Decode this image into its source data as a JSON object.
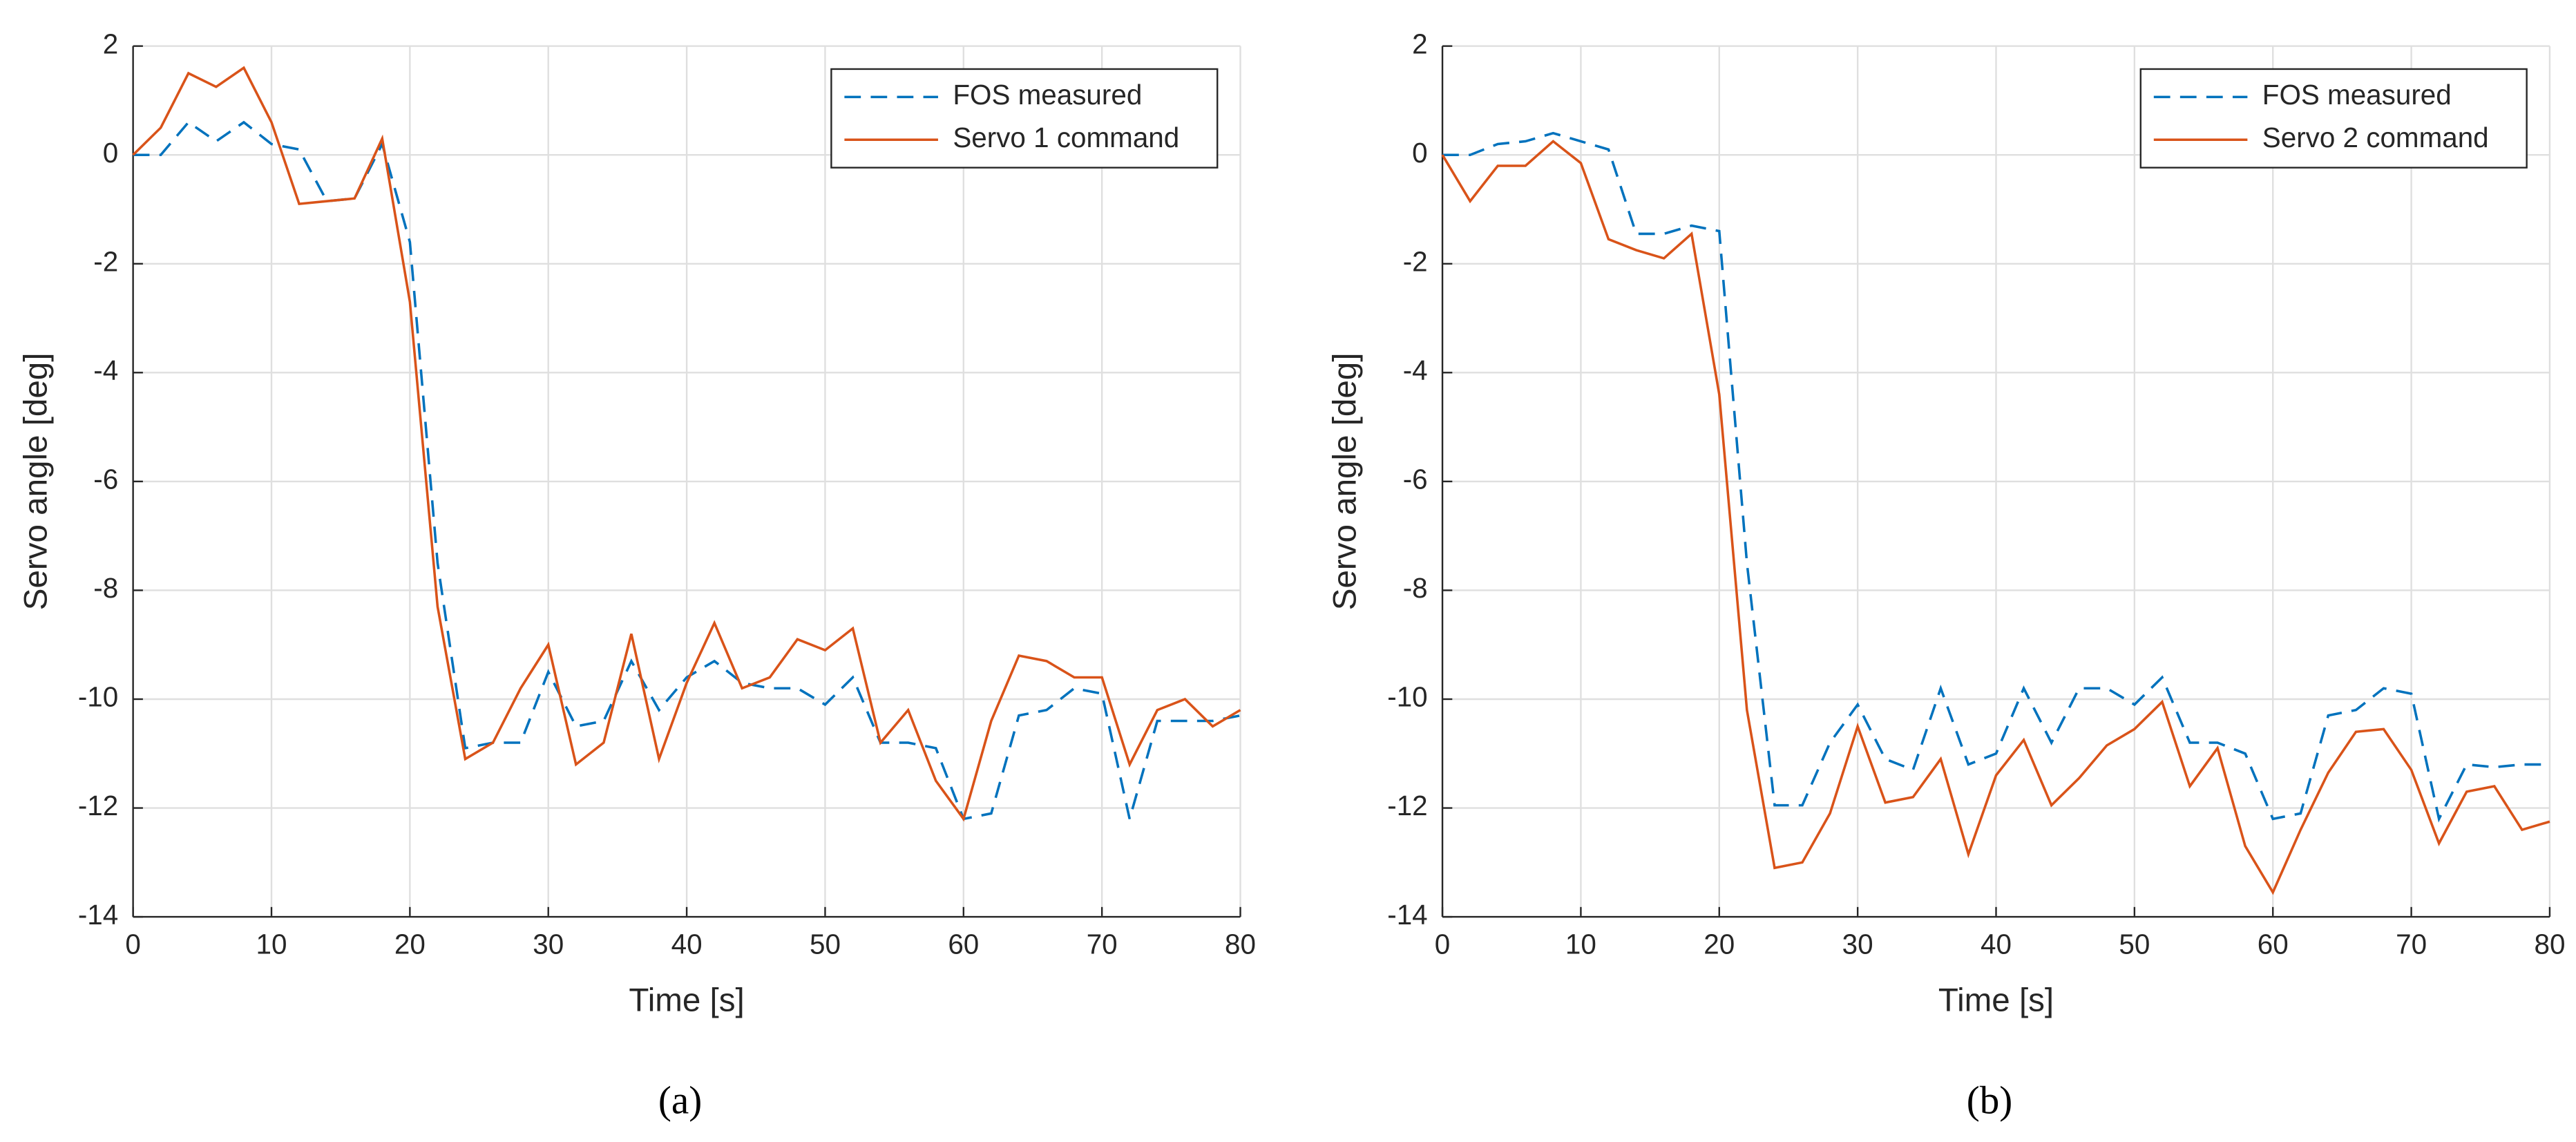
{
  "chart_data": [
    {
      "type": "line",
      "xlabel": "Time [s]",
      "ylabel": "Servo angle [deg]",
      "caption": "(a)",
      "x": [
        0,
        2,
        4,
        6,
        8,
        10,
        12,
        14,
        16,
        18,
        20,
        22,
        24,
        26,
        28,
        30,
        32,
        34,
        36,
        38,
        40,
        42,
        44,
        46,
        48,
        50,
        52,
        54,
        56,
        58,
        60,
        62,
        64,
        66,
        68,
        70,
        72,
        74,
        76,
        78,
        80
      ],
      "series": [
        {
          "name": "FOS measured",
          "color": "#0072bd",
          "linestyle": "dashed",
          "values": [
            0,
            0,
            0.6,
            0.25,
            0.6,
            0.2,
            0.1,
            -0.85,
            -0.8,
            0.2,
            -1.6,
            -7.5,
            -10.9,
            -10.8,
            -10.8,
            -9.5,
            -10.5,
            -10.4,
            -9.3,
            -10.2,
            -9.6,
            -9.3,
            -9.7,
            -9.8,
            -9.8,
            -10.1,
            -9.6,
            -10.8,
            -10.8,
            -10.9,
            -12.2,
            -12.1,
            -10.3,
            -10.2,
            -9.8,
            -9.9,
            -12.2,
            -10.4,
            -10.4,
            -10.4,
            -10.3
          ]
        },
        {
          "name": "Servo 1 command",
          "color": "#d95319",
          "linestyle": "solid",
          "values": [
            0,
            0.5,
            1.5,
            1.25,
            1.6,
            0.6,
            -0.9,
            -0.85,
            -0.8,
            0.3,
            -2.7,
            -8.3,
            -11.1,
            -10.8,
            -9.8,
            -9.0,
            -11.2,
            -10.8,
            -8.8,
            -11.1,
            -9.7,
            -8.6,
            -9.8,
            -9.6,
            -8.9,
            -9.1,
            -8.7,
            -10.8,
            -10.2,
            -11.5,
            -12.2,
            -10.4,
            -9.2,
            -9.3,
            -9.6,
            -9.6,
            -11.2,
            -10.2,
            -10.0,
            -10.5,
            -10.2
          ]
        }
      ],
      "xlim": [
        0,
        80
      ],
      "xticks": [
        0,
        10,
        20,
        30,
        40,
        50,
        60,
        70,
        80
      ],
      "ylim": [
        -14,
        2
      ],
      "yticks": [
        2,
        0,
        -2,
        -4,
        -6,
        -8,
        -10,
        -12,
        -14
      ],
      "grid": true,
      "legend": "upper right"
    },
    {
      "type": "line",
      "xlabel": "Time [s]",
      "ylabel": "Servo angle [deg]",
      "caption": "(b)",
      "x": [
        0,
        2,
        4,
        6,
        8,
        10,
        12,
        14,
        16,
        18,
        20,
        22,
        24,
        26,
        28,
        30,
        32,
        34,
        36,
        38,
        40,
        42,
        44,
        46,
        48,
        50,
        52,
        54,
        56,
        58,
        60,
        62,
        64,
        66,
        68,
        70,
        72,
        74,
        76,
        78,
        80
      ],
      "series": [
        {
          "name": "FOS measured",
          "color": "#0072bd",
          "linestyle": "dashed",
          "values": [
            0,
            0,
            0.2,
            0.25,
            0.4,
            0.25,
            0.1,
            -1.45,
            -1.45,
            -1.3,
            -1.4,
            -7.5,
            -11.95,
            -11.95,
            -10.8,
            -10.1,
            -11.1,
            -11.3,
            -9.8,
            -11.2,
            -11.0,
            -9.8,
            -10.8,
            -9.8,
            -9.8,
            -10.1,
            -9.6,
            -10.8,
            -10.8,
            -11.0,
            -12.2,
            -12.1,
            -10.3,
            -10.2,
            -9.8,
            -9.9,
            -12.2,
            -11.2,
            -11.25,
            -11.2,
            -11.2
          ]
        },
        {
          "name": "Servo 2 command",
          "color": "#d95319",
          "linestyle": "solid",
          "values": [
            0,
            -0.85,
            -0.2,
            -0.2,
            0.25,
            -0.15,
            -1.55,
            -1.75,
            -1.9,
            -1.45,
            -4.4,
            -10.2,
            -13.1,
            -13.0,
            -12.1,
            -10.5,
            -11.9,
            -11.8,
            -11.1,
            -12.85,
            -11.4,
            -10.75,
            -11.95,
            -11.45,
            -10.85,
            -10.55,
            -10.05,
            -11.6,
            -10.9,
            -12.7,
            -13.55,
            -12.4,
            -11.35,
            -10.6,
            -10.55,
            -11.3,
            -12.65,
            -11.7,
            -11.6,
            -12.4,
            -12.25
          ]
        }
      ],
      "xlim": [
        0,
        80
      ],
      "xticks": [
        0,
        10,
        20,
        30,
        40,
        50,
        60,
        70,
        80
      ],
      "ylim": [
        -14,
        2
      ],
      "yticks": [
        2,
        0,
        -2,
        -4,
        -6,
        -8,
        -10,
        -12,
        -14
      ],
      "grid": true,
      "legend": "upper right"
    }
  ]
}
